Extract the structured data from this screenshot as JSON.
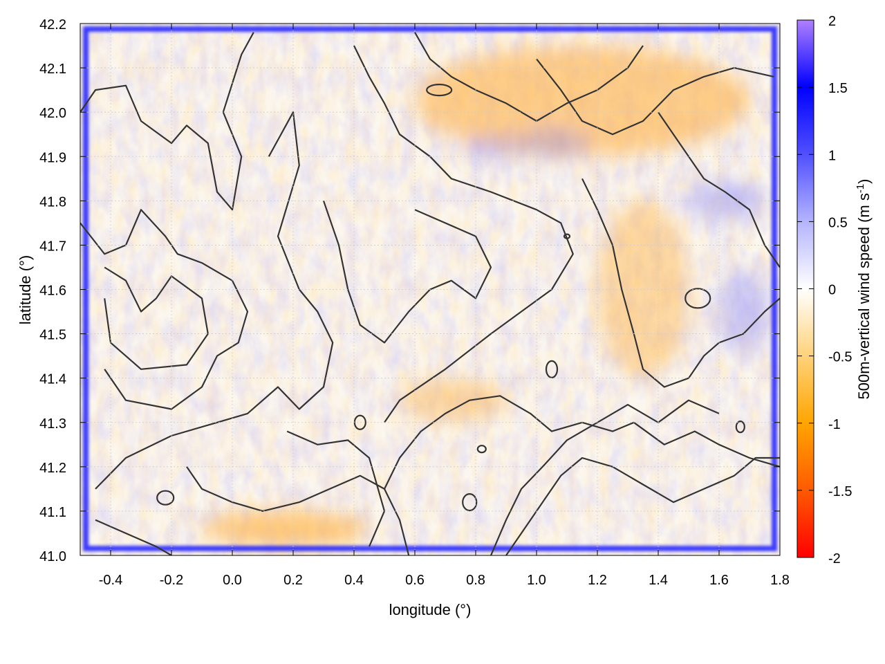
{
  "chart_data": {
    "type": "heatmap",
    "title": "",
    "xlabel": "longitude (°)",
    "ylabel": "latitude (°)",
    "xlim": [
      -0.5,
      1.8
    ],
    "ylim": [
      41.0,
      42.2
    ],
    "x_ticks": [
      "-0.4",
      "-0.2",
      "0.0",
      "0.2",
      "0.4",
      "0.6",
      "0.8",
      "1.0",
      "1.2",
      "1.4",
      "1.6",
      "1.8"
    ],
    "y_ticks": [
      "41.0",
      "41.1",
      "41.2",
      "41.3",
      "41.4",
      "41.5",
      "41.6",
      "41.7",
      "41.8",
      "41.9",
      "42.0",
      "42.1",
      "42.2"
    ],
    "grid": true,
    "colorbar": {
      "label": "500m-vertical wind speed (m s",
      "label_superscript": "-1",
      "label_suffix": ")",
      "range": [
        -2,
        2
      ],
      "ticks": [
        "-2",
        "-1.5",
        "-1",
        "-0.5",
        "0",
        "0.5",
        "1",
        "1.5",
        "2"
      ],
      "palette": [
        "#ff0000",
        "#ff6600",
        "#ffa500",
        "#ffd27a",
        "#ffffff",
        "#b8b8ff",
        "#6666ff",
        "#0000ff",
        "#b080ff"
      ]
    },
    "features": {
      "positive_border_frame": "blue strong updraft band along the domain edge",
      "negative_zones": [
        {
          "name": "north ridge",
          "lon": [
            0.6,
            1.7
          ],
          "lat": [
            41.9,
            42.15
          ],
          "value": -0.8
        },
        {
          "name": "central band",
          "lon": [
            1.2,
            1.5
          ],
          "lat": [
            41.4,
            41.8
          ],
          "value": -0.6
        },
        {
          "name": "south coast",
          "lon": [
            -0.1,
            0.45
          ],
          "lat": [
            41.02,
            41.1
          ],
          "value": -0.9
        },
        {
          "name": "south-central",
          "lon": [
            0.55,
            0.9
          ],
          "lat": [
            41.3,
            41.4
          ],
          "value": -0.6
        }
      ],
      "contours": "terrain elevation isolines (dark grey)"
    }
  }
}
